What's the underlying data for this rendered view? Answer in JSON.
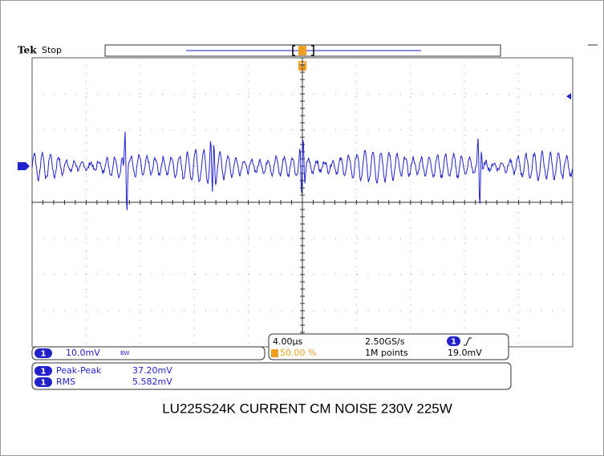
{
  "header": {
    "brand": "Tek",
    "status": "Stop"
  },
  "channel": {
    "number": "1",
    "scale": "10.0mV",
    "bw": "BW"
  },
  "timebase": {
    "scale": "4.00µs",
    "sample_rate": "2.50GS/s",
    "trigger_position": "50.00 %",
    "record_length": "1M points",
    "trigger_channel": "1",
    "trigger_level": "19.0mV"
  },
  "measurements": [
    {
      "channel": "1",
      "name": "Peak-Peak",
      "value": "37.20mV"
    },
    {
      "channel": "1",
      "name": "RMS",
      "value": "5.582mV"
    }
  ],
  "caption": "LU225S24K CURRENT CM NOISE 230V 225W"
}
